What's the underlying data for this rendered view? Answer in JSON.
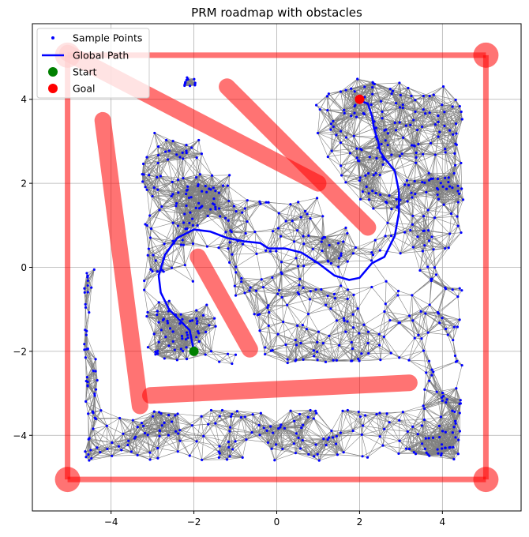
{
  "chart_data": {
    "type": "scatter",
    "title": "PRM roadmap with obstacles",
    "xlabel": "",
    "ylabel": "",
    "xlim": [
      -5.9,
      5.9
    ],
    "ylim": [
      -5.8,
      5.8
    ],
    "xticks": [
      -4,
      -2,
      0,
      2,
      4
    ],
    "yticks": [
      -4,
      -2,
      0,
      2,
      4
    ],
    "grid": true,
    "legend_position": "top-left",
    "legend": [
      {
        "label": "Sample Points",
        "kind": "points",
        "color": "#0000ff"
      },
      {
        "label": "Global Path",
        "kind": "line",
        "color": "#0000ff"
      },
      {
        "label": "Start",
        "kind": "marker",
        "color": "#008000"
      },
      {
        "label": "Goal",
        "kind": "marker",
        "color": "#ff0000"
      }
    ],
    "colors": {
      "obstacle": "#ff0000",
      "edge": "#808080",
      "path": "#0000ff",
      "start": "#008000",
      "goal": "#ff0000",
      "sample": "#0000ff"
    },
    "obstacle_radius": 0.2,
    "obstacles": [
      [
        [
          -5.05,
          5.05
        ],
        [
          5.05,
          5.05
        ]
      ],
      [
        [
          5.05,
          5.05
        ],
        [
          5.05,
          -5.05
        ]
      ],
      [
        [
          5.05,
          -5.05
        ],
        [
          -5.05,
          -5.05
        ]
      ],
      [
        [
          -5.05,
          -5.05
        ],
        [
          -5.05,
          5.05
        ]
      ],
      [
        [
          -5.05,
          5.1
        ],
        [
          1.0,
          2.0
        ]
      ],
      [
        [
          -4.2,
          3.5
        ],
        [
          -3.3,
          -3.3
        ]
      ],
      [
        [
          -3.05,
          -3.05
        ],
        [
          3.2,
          -2.75
        ]
      ],
      [
        [
          -1.2,
          4.3
        ],
        [
          2.2,
          0.95
        ]
      ],
      [
        [
          -1.9,
          0.25
        ],
        [
          -0.65,
          -1.95
        ]
      ]
    ],
    "start": [
      -2.0,
      -2.0
    ],
    "goal": [
      2.0,
      4.0
    ],
    "global_path": [
      [
        -2.0,
        -2.0
      ],
      [
        -2.1,
        -1.5
      ],
      [
        -2.6,
        -1.0
      ],
      [
        -2.8,
        -0.6
      ],
      [
        -2.85,
        -0.2
      ],
      [
        -2.7,
        0.3
      ],
      [
        -2.4,
        0.7
      ],
      [
        -2.0,
        0.9
      ],
      [
        -1.6,
        0.85
      ],
      [
        -1.2,
        0.7
      ],
      [
        -0.8,
        0.62
      ],
      [
        -0.4,
        0.58
      ],
      [
        -0.2,
        0.45
      ],
      [
        0.2,
        0.45
      ],
      [
        0.6,
        0.35
      ],
      [
        1.0,
        0.1
      ],
      [
        1.4,
        -0.2
      ],
      [
        1.75,
        -0.3
      ],
      [
        2.0,
        -0.25
      ],
      [
        2.3,
        0.1
      ],
      [
        2.6,
        0.25
      ],
      [
        2.85,
        0.75
      ],
      [
        2.95,
        1.3
      ],
      [
        2.95,
        1.8
      ],
      [
        2.85,
        2.3
      ],
      [
        2.6,
        2.6
      ],
      [
        2.5,
        2.75
      ],
      [
        2.45,
        3.0
      ],
      [
        2.35,
        3.3
      ],
      [
        2.3,
        3.6
      ],
      [
        2.25,
        3.75
      ],
      [
        2.2,
        3.9
      ],
      [
        2.05,
        3.95
      ],
      [
        2.0,
        4.0
      ]
    ],
    "sample_regions": [
      {
        "x": [
          0.9,
          4.5
        ],
        "y": [
          1.6,
          4.5
        ],
        "n": 190
      },
      {
        "x": [
          -3.2,
          4.5
        ],
        "y": [
          -2.3,
          1.6
        ],
        "n": 330
      },
      {
        "x": [
          -3.3,
          -1.8
        ],
        "y": [
          0.9,
          3.2
        ],
        "n": 60
      },
      {
        "x": [
          -2.5,
          -1.0
        ],
        "y": [
          1.1,
          2.3
        ],
        "n": 30
      },
      {
        "x": [
          -4.6,
          4.3
        ],
        "y": [
          -4.6,
          -3.4
        ],
        "n": 170
      },
      {
        "x": [
          3.5,
          4.5
        ],
        "y": [
          -4.6,
          -2.3
        ],
        "n": 45
      },
      {
        "x": [
          -4.65,
          -4.3
        ],
        "y": [
          -4.6,
          0.0
        ],
        "n": 45
      },
      {
        "x": [
          -2.3,
          -1.9
        ],
        "y": [
          4.3,
          4.55
        ],
        "n": 12
      },
      {
        "x": [
          -3.0,
          -1.8
        ],
        "y": [
          -2.4,
          -1.0
        ],
        "n": 30
      },
      {
        "x": [
          -0.3,
          1.5
        ],
        "y": [
          1.8,
          4.4
        ],
        "n": 0
      }
    ],
    "connection_radius": 0.62
  }
}
